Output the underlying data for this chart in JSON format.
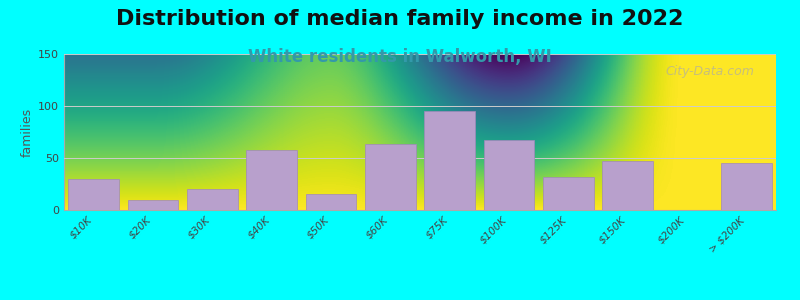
{
  "title": "Distribution of median family income in 2022",
  "subtitle": "White residents in Walworth, WI",
  "ylabel": "families",
  "background_color": "#00FFFF",
  "plot_bg_gradient_top": "#d8f0c0",
  "plot_bg_gradient_bottom": "#ffffff",
  "bar_color": "#b8a0cc",
  "bar_edge_color": "#a088bb",
  "categories": [
    "$10K",
    "$20K",
    "$30K",
    "$40K",
    "$50K",
    "$60K",
    "$75K",
    "$100K",
    "$125K",
    "$150K",
    "$200K",
    "> $200K"
  ],
  "values": [
    30,
    10,
    20,
    58,
    15,
    63,
    95,
    67,
    32,
    47,
    0,
    45
  ],
  "ylim": [
    0,
    150
  ],
  "yticks": [
    0,
    50,
    100,
    150
  ],
  "watermark": "City-Data.com",
  "title_fontsize": 16,
  "subtitle_fontsize": 12,
  "subtitle_color": "#3399aa"
}
